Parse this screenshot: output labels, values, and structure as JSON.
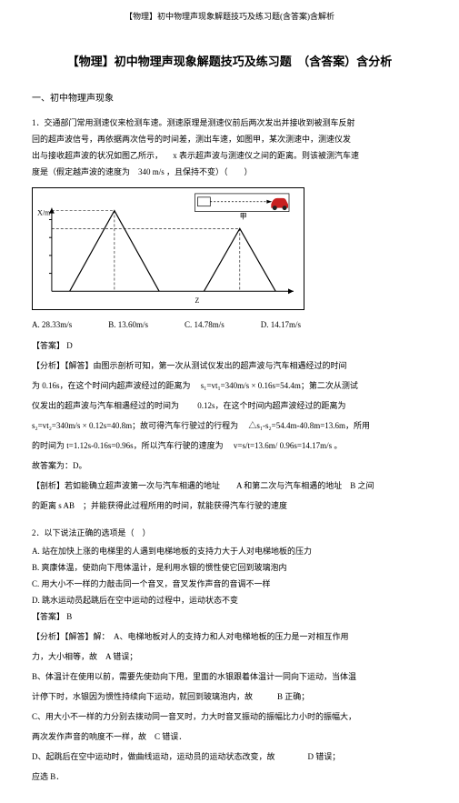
{
  "header": "【物理】初中物理声现象解题技巧及练习题(含答案)含解析",
  "mainTitle": "【物理】初中物理声现象解题技巧及练习题　（含答案）含分析",
  "sectionTitle": "一、初中物理声现象",
  "q1": {
    "intro1": "1．交通部门常用测速仪来检测车速。测速原理是测速仪前后两次发出并接收到被测车反射",
    "intro2": "回的超声波信号，再依据两次信号的时间差，测出车速，如图甲，某次测速中，测速仪发",
    "intro3": "出与接收超声波的状况如图乙所示， 　x 表示超声波与测速仪之间的距离。则该被测汽车速",
    "intro4": "度是（假定越声波的速度为　340 m/s ，且保持不变）（　　）",
    "optA": "A. 28.33m/s",
    "optB": "B. 13.60m/s",
    "optC": "C. 14.78m/s",
    "optD": "D. 14.17m/s",
    "answer": "【答案】 D",
    "analLabel": "【分析】【解答】由图示剖析可知，第一次从测试仪发出的超声波与汽车相遇经过的时间",
    "anal1": "为 0.16s，在这个时间内超声波经过的距离为 　s₁=vt₁=340m/s × 0.16s=54.4m；第二次从测试",
    "anal2": "仪发出的超声波与汽车相遇经过的时间为 　　0.12s，在这个时间内超声波经过的距离为",
    "anal3": "s₂=vt₂=340m/s × 0.12s=40.8m；故可得汽车行驶过的行程为 　△s₁-s₂=54.4m-40.8m=13.6m，所用",
    "anal4": "的时间为 t=1.12s-0.16s=0.96s，所以汽车行驶的速度为 　v=s/t=13.6m/ 0.96s=14.17m/s 。",
    "anal5": "故答案为：D。",
    "anal6": "【剖析】若如能确立超声波第一次与汽车相遇的地址　　A 和第二次与汽车相遇的地址　B 之间",
    "anal7": "的距离 s AB　；并能获得此过程所用的时间，就能获得汽车行驶的速度"
  },
  "q2": {
    "stem": "2．以下说法正确的选项是（　）",
    "optA": "A. 站在加快上涨的电梯里的人遇到电梯地板的支持力大于人对电梯地板的压力",
    "optB": "B. 爽康体温，使劲向下甩体温计，是利用水银的惯性使它回到玻璃泡内",
    "optC": "C. 用大小不一样的力敲击同一个音叉，音叉发作声音的音调不一样",
    "optD": "D. 跳水运动员起跳后在空中运动的过程中，运动状态不变",
    "answer": "【答案】 B",
    "analLabel": "【分析】【解答】解：　A、电梯地板对人的支持力和人对电梯地板的压力是一对相互作用",
    "anal1": "力，大小相等，故　A 错误；",
    "anal2": "B、体温计在使用以前，需要先使劲向下甩，里面的水银跟着体温计一同向下运动，当体温",
    "anal3": "计停下时，水银因为惯性持续向下运动，就回到玻璃泡内，故　　　B 正确；",
    "anal4": "C、用大小不一样的力分别去拨动同一音叉时，力大时音叉振动的振幅比力小时的振幅大，",
    "anal5": "两次发作声音的响度不一样，故　C 错误．",
    "anal6": "D、起跳后在空中运动时，做曲线运动，运动员的运动状态改变，故　　　　D 错误；",
    "anal7": "应选 B．"
  },
  "figure": {
    "bg": "#ffffff",
    "border": "#000000",
    "lineColor": "#000000",
    "xlabel": "Z",
    "ylabel": "X/m",
    "triangle1_x": [
      40,
      90,
      140
    ],
    "triangle1_y": [
      115,
      25,
      115
    ],
    "triangle2_x": [
      190,
      230,
      270
    ],
    "triangle2_y": [
      115,
      45,
      115
    ],
    "car_color": "#c82020"
  }
}
